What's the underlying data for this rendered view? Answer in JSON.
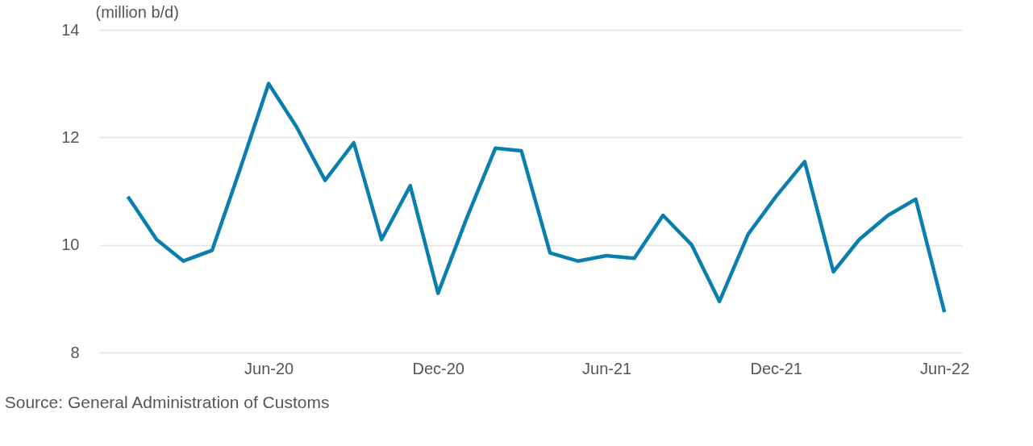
{
  "chart_data": {
    "type": "line",
    "ylabel": "(million b/d)",
    "x": [
      "2020-01",
      "2020-02",
      "2020-03",
      "2020-04",
      "2020-05",
      "2020-06",
      "2020-07",
      "2020-08",
      "2020-09",
      "2020-10",
      "2020-11",
      "2020-12",
      "2021-01",
      "2021-02",
      "2021-03",
      "2021-04",
      "2021-05",
      "2021-06",
      "2021-07",
      "2021-08",
      "2021-09",
      "2021-10",
      "2021-11",
      "2021-12",
      "2022-01",
      "2022-02",
      "2022-03",
      "2022-04",
      "2022-05",
      "2022-06"
    ],
    "series": [
      {
        "color": "#0a7fae",
        "values": [
          10.9,
          10.1,
          9.7,
          9.9,
          11.4,
          13.0,
          12.2,
          11.2,
          11.9,
          10.1,
          11.1,
          9.1,
          10.5,
          11.8,
          11.75,
          9.85,
          9.7,
          9.8,
          9.75,
          10.55,
          10.0,
          8.95,
          10.2,
          10.9,
          11.55,
          9.5,
          10.1,
          10.55,
          10.85,
          8.75
        ]
      }
    ],
    "xlim": [
      "2019-12-01",
      "2022-06-20"
    ],
    "xticks": [
      {
        "value": "2020-06",
        "label": "Jun-20"
      },
      {
        "value": "2020-12",
        "label": "Dec-20"
      },
      {
        "value": "2021-06",
        "label": "Jun-21"
      },
      {
        "value": "2021-12",
        "label": "Dec-21"
      },
      {
        "value": "2022-06",
        "label": "Jun-22"
      }
    ],
    "ylim": [
      8,
      14
    ],
    "yticks": [
      8,
      10,
      12,
      14
    ],
    "grid": "y",
    "marker": "none",
    "line_style": "solid",
    "annotations": [
      "Source: General Administration of Customs"
    ]
  }
}
